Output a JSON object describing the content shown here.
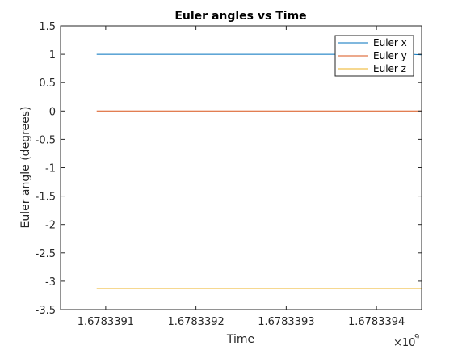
{
  "chart_data": {
    "type": "line",
    "title": "Euler angles vs Time",
    "xlabel": "Time",
    "ylabel": "Euler angle (degrees)",
    "x_exponent_label": "×10",
    "x_exponent_power": "9",
    "xlim": [
      1.67833905,
      1.67833945
    ],
    "ylim": [
      -3.5,
      1.5
    ],
    "x_ticks": [
      1.6783391,
      1.6783392,
      1.6783393,
      1.6783394
    ],
    "x_tick_labels": [
      "1.6783391",
      "1.6783392",
      "1.6783393",
      "1.6783394"
    ],
    "y_ticks": [
      1.5,
      1,
      0.5,
      0,
      -0.5,
      -1,
      -1.5,
      -2,
      -2.5,
      -3,
      -3.5
    ],
    "y_tick_labels": [
      "1.5",
      "1",
      "0.5",
      "0",
      "-0.5",
      "-1",
      "-1.5",
      "-2",
      "-2.5",
      "-3",
      "-3.5"
    ],
    "grid": false,
    "legend_position": "top-right",
    "series": [
      {
        "name": "Euler x",
        "color": "#0072BD",
        "x": [
          1.67833909,
          1.67833944,
          1.67833945
        ],
        "y": [
          1.0,
          1.0,
          0.99
        ]
      },
      {
        "name": "Euler y",
        "color": "#D95319",
        "x": [
          1.67833909,
          1.67833945
        ],
        "y": [
          0.0,
          0.0
        ]
      },
      {
        "name": "Euler z",
        "color": "#EDB120",
        "x": [
          1.67833909,
          1.67833945
        ],
        "y": [
          -3.13,
          -3.13
        ]
      }
    ]
  }
}
